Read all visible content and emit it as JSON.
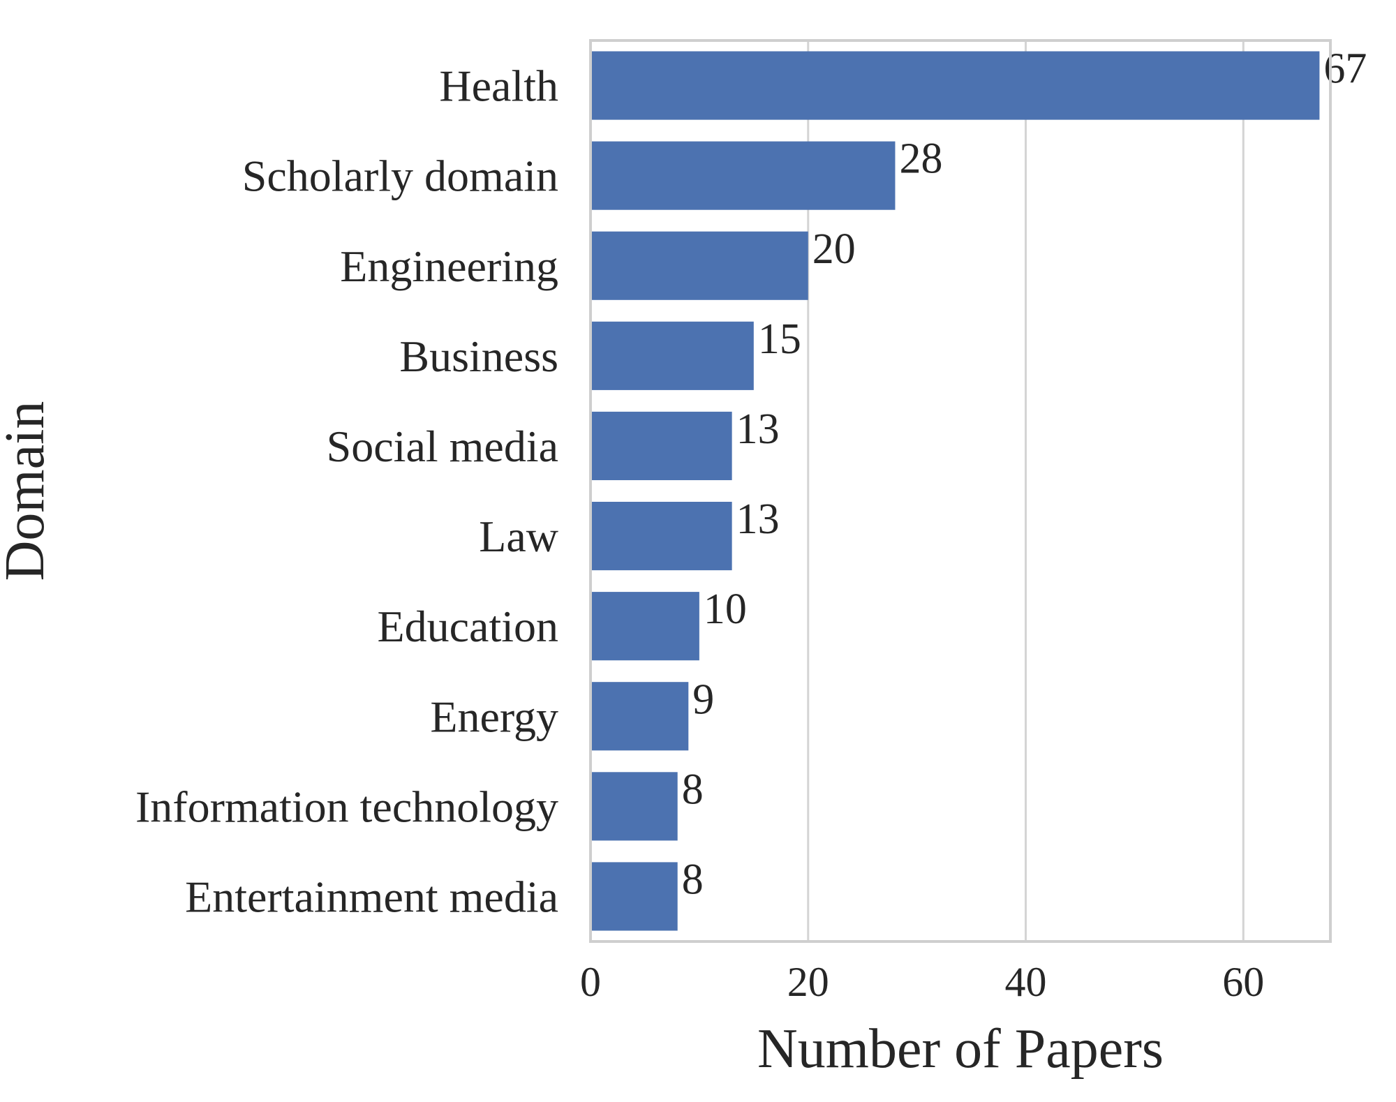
{
  "chart_data": {
    "type": "bar",
    "orientation": "horizontal",
    "categories": [
      "Health",
      "Scholarly domain",
      "Engineering",
      "Business",
      "Social media",
      "Law",
      "Education",
      "Energy",
      "Information technology",
      "Entertainment media"
    ],
    "values": [
      67,
      28,
      20,
      15,
      13,
      13,
      10,
      9,
      8,
      8
    ],
    "data_labels": [
      "67",
      "28",
      "20",
      "15",
      "13",
      "13",
      "10",
      "9",
      "8",
      "8"
    ],
    "xlabel": "Number of Papers",
    "ylabel": "Domain",
    "xlim": [
      0,
      68
    ],
    "xticks": [
      0,
      20,
      40,
      60
    ],
    "xtick_labels": [
      "0",
      "20",
      "40",
      "60"
    ],
    "grid": "vertical",
    "bar_color": "#4c72b0"
  }
}
